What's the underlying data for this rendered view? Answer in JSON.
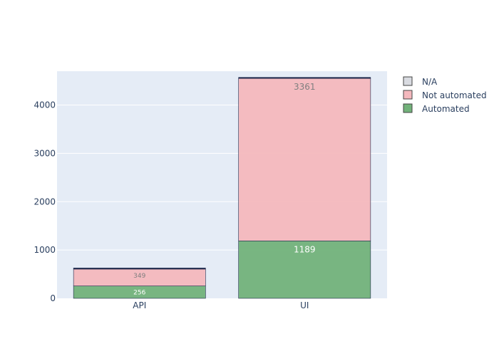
{
  "chart_data": {
    "type": "bar",
    "barmode": "stack",
    "categories": [
      "API",
      "UI"
    ],
    "series": [
      {
        "name": "Automated",
        "values": [
          256,
          1189
        ],
        "color": "#72b27a",
        "labels": [
          "256",
          "1189"
        ],
        "label_color": "#ffffff"
      },
      {
        "name": "Not automated",
        "values": [
          349,
          3361
        ],
        "color": "#f4b8bd",
        "labels": [
          "349",
          "3361"
        ],
        "label_color": "#7f7f7f"
      },
      {
        "name": "N/A",
        "values": [
          6,
          6
        ],
        "color": "#1f2a4d",
        "labels": [
          "",
          ""
        ],
        "label_color": "#7f7f7f"
      }
    ],
    "legend_order": [
      "N/A",
      "Not automated",
      "Automated"
    ],
    "legend_colors": {
      "N/A": "#d9dbe1",
      "Not automated": "#f4b8bd",
      "Automated": "#72b27a"
    },
    "ylim": [
      0,
      4700
    ],
    "yticks": [
      0,
      1000,
      2000,
      3000,
      4000
    ],
    "grid": true,
    "legend_position": "top-right",
    "plot_bg": "#e5ecf6"
  }
}
